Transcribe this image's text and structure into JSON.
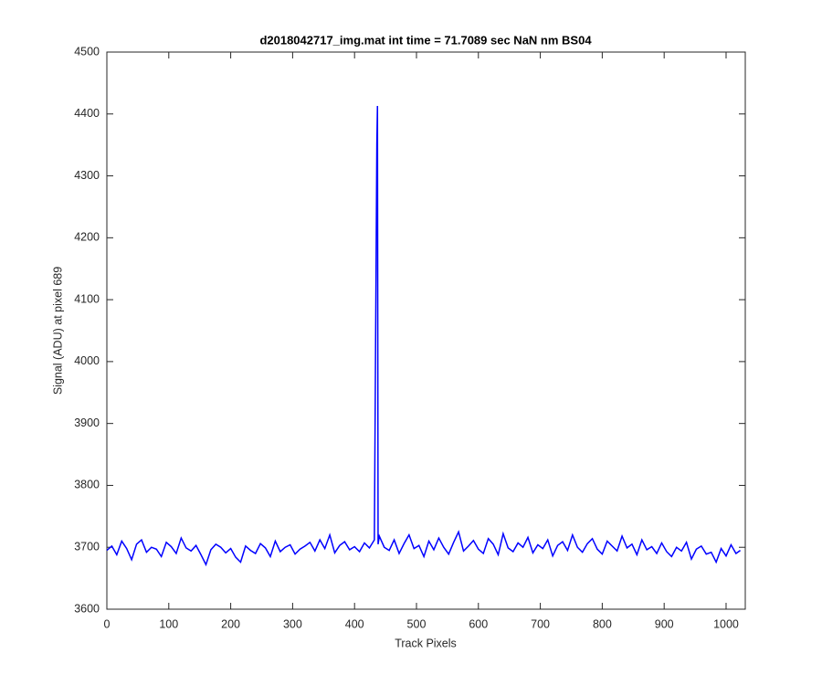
{
  "chart_data": {
    "type": "line",
    "title": "d2018042717_img.mat int time = 71.7089 sec  NaN nm BS04",
    "x_label": "Track Pixels",
    "y_label": "Signal (ADU) at pixel 689",
    "xlim": [
      0,
      1031
    ],
    "ylim": [
      3600,
      4500
    ],
    "xticks": [
      0,
      100,
      200,
      300,
      400,
      500,
      600,
      700,
      800,
      900,
      1000
    ],
    "yticks": [
      3600,
      3700,
      3800,
      3900,
      4000,
      4100,
      4200,
      4300,
      4400,
      4500
    ],
    "grid": false,
    "series": [
      {
        "color": "#0000ff",
        "x": [
          0,
          8,
          16,
          24,
          32,
          40,
          48,
          56,
          64,
          72,
          80,
          88,
          96,
          104,
          112,
          120,
          128,
          136,
          144,
          152,
          160,
          168,
          176,
          184,
          192,
          200,
          208,
          216,
          224,
          232,
          240,
          248,
          256,
          264,
          272,
          280,
          288,
          296,
          304,
          312,
          320,
          328,
          336,
          344,
          352,
          360,
          368,
          376,
          384,
          392,
          400,
          408,
          416,
          424,
          432,
          436,
          437,
          438,
          440,
          448,
          456,
          464,
          472,
          480,
          488,
          496,
          504,
          512,
          520,
          528,
          536,
          544,
          552,
          560,
          568,
          576,
          584,
          592,
          600,
          608,
          616,
          624,
          632,
          640,
          648,
          656,
          664,
          672,
          680,
          688,
          696,
          704,
          712,
          720,
          728,
          736,
          744,
          752,
          760,
          768,
          776,
          784,
          792,
          800,
          808,
          816,
          824,
          832,
          840,
          848,
          856,
          864,
          872,
          880,
          888,
          896,
          904,
          912,
          920,
          928,
          936,
          944,
          952,
          960,
          968,
          976,
          984,
          992,
          1000,
          1008,
          1016,
          1023
        ],
        "values": [
          3695,
          3702,
          3688,
          3710,
          3698,
          3680,
          3705,
          3712,
          3692,
          3700,
          3697,
          3685,
          3708,
          3701,
          3690,
          3715,
          3699,
          3694,
          3703,
          3688,
          3672,
          3696,
          3705,
          3700,
          3691,
          3698,
          3684,
          3676,
          3702,
          3695,
          3690,
          3706,
          3699,
          3685,
          3710,
          3693,
          3700,
          3704,
          3689,
          3697,
          3702,
          3708,
          3694,
          3712,
          3698,
          3720,
          3691,
          3703,
          3709,
          3696,
          3701,
          3693,
          3707,
          3699,
          3712,
          4352,
          4413,
          3705,
          3718,
          3700,
          3695,
          3712,
          3690,
          3706,
          3720,
          3698,
          3703,
          3685,
          3710,
          3696,
          3715,
          3700,
          3689,
          3708,
          3725,
          3694,
          3702,
          3711,
          3697,
          3690,
          3714,
          3705,
          3688,
          3722,
          3699,
          3693,
          3707,
          3700,
          3716,
          3691,
          3704,
          3698,
          3712,
          3686,
          3703,
          3709,
          3695,
          3720,
          3700,
          3692,
          3706,
          3714,
          3697,
          3689,
          3710,
          3702,
          3694,
          3718,
          3699,
          3705,
          3688,
          3712,
          3696,
          3701,
          3690,
          3707,
          3693,
          3685,
          3700,
          3694,
          3708,
          3681,
          3697,
          3702,
          3689,
          3692,
          3676,
          3698,
          3686,
          3704,
          3690,
          3695
        ]
      }
    ]
  }
}
